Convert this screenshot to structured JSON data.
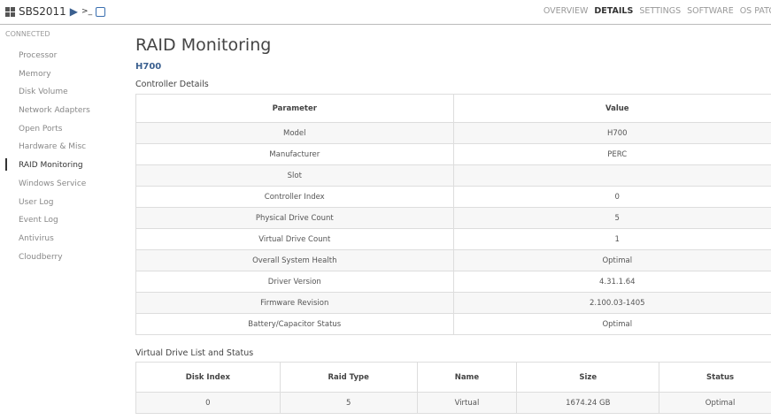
{
  "header": {
    "host": "SBS2011",
    "console_glyph": ">_",
    "tabs": [
      {
        "label": "OVERVIEW",
        "active": false
      },
      {
        "label": "DETAILS",
        "active": true
      },
      {
        "label": "SETTINGS",
        "active": false
      },
      {
        "label": "SOFTWARE",
        "active": false
      },
      {
        "label": "OS PATC",
        "active": false
      }
    ]
  },
  "status": "CONNECTED",
  "sidebar": {
    "items": [
      {
        "label": "Processor"
      },
      {
        "label": "Memory"
      },
      {
        "label": "Disk Volume"
      },
      {
        "label": "Network Adapters"
      },
      {
        "label": "Open Ports"
      },
      {
        "label": "Hardware & Misc"
      },
      {
        "label": "RAID Monitoring",
        "active": true
      },
      {
        "label": "Windows Service"
      },
      {
        "label": "User Log"
      },
      {
        "label": "Event Log"
      },
      {
        "label": "Antivirus"
      },
      {
        "label": "Cloudberry"
      }
    ]
  },
  "main": {
    "title": "RAID Monitoring",
    "controller": "H700",
    "controller_caption": "Controller Details",
    "controller_table": {
      "headers": [
        "Parameter",
        "Value"
      ],
      "rows": [
        [
          "Model",
          "H700"
        ],
        [
          "Manufacturer",
          "PERC"
        ],
        [
          "Slot",
          ""
        ],
        [
          "Controller Index",
          "0"
        ],
        [
          "Physical Drive Count",
          "5"
        ],
        [
          "Virtual Drive Count",
          "1"
        ],
        [
          "Overall System Health",
          "Optimal"
        ],
        [
          "Driver Version",
          "4.31.1.64"
        ],
        [
          "Firmware Revision",
          "2.100.03-1405"
        ],
        [
          "Battery/Capacitor Status",
          "Optimal"
        ]
      ]
    },
    "vd_caption": "Virtual Drive List and Status",
    "vd_table": {
      "headers": [
        "Disk Index",
        "Raid Type",
        "Name",
        "Size",
        "Status"
      ],
      "rows": [
        [
          "0",
          "5",
          "Virtual",
          "1674.24 GB",
          "Optimal"
        ]
      ]
    }
  }
}
